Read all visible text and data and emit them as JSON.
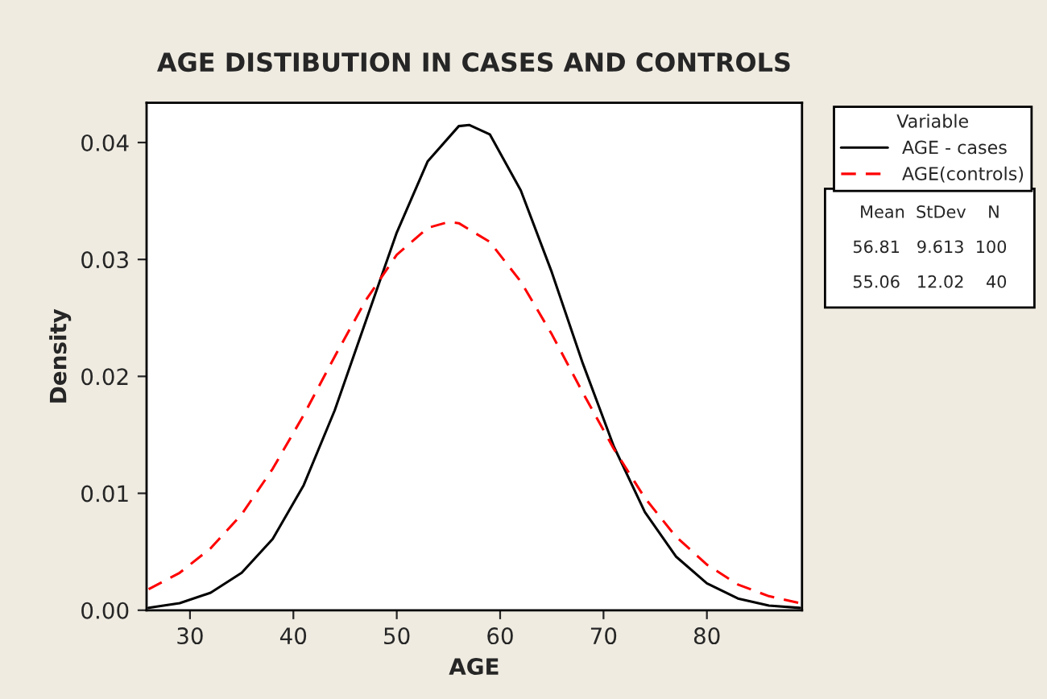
{
  "chart_data": {
    "type": "line",
    "title": "AGE DISTIBUTION IN CASES AND CONTROLS",
    "xlabel": "AGE",
    "ylabel": "Density",
    "legend_title": "Variable",
    "legend": "right",
    "grid": false,
    "xlim": [
      25.8,
      89.2
    ],
    "xticks": [
      30,
      40,
      50,
      60,
      70,
      80
    ],
    "ylim": [
      0,
      0.0434
    ],
    "yticks": [
      {
        "value": 0,
        "label": "0.00"
      },
      {
        "value": 0.01,
        "label": "0.01"
      },
      {
        "value": 0.02,
        "label": "0.02"
      },
      {
        "value": 0.03,
        "label": "0.03"
      },
      {
        "value": 0.04,
        "label": "0.04"
      }
    ],
    "series": [
      {
        "name": "AGE - cases",
        "color": "#000000",
        "line_style": "solid",
        "x": [
          26,
          29,
          32,
          35,
          38,
          41,
          44,
          47,
          50,
          53,
          56,
          57,
          59,
          62,
          65,
          68,
          71,
          74,
          77,
          80,
          83,
          86,
          89
        ],
        "values": [
          0.0002,
          0.0006,
          0.0015,
          0.0032,
          0.0061,
          0.0107,
          0.0171,
          0.0247,
          0.0323,
          0.0384,
          0.0414,
          0.0415,
          0.0407,
          0.0359,
          0.0289,
          0.0211,
          0.014,
          0.0084,
          0.0046,
          0.0023,
          0.001,
          0.0004,
          0.0002
        ]
      },
      {
        "name": "AGE(controls)",
        "color": "#ff0000",
        "line_style": "dashed",
        "x": [
          26,
          29,
          32,
          35,
          38,
          41,
          44,
          47,
          50,
          53,
          55,
          56,
          59,
          62,
          65,
          68,
          71,
          74,
          77,
          80,
          83,
          86,
          89
        ],
        "values": [
          0.0018,
          0.0032,
          0.0053,
          0.0082,
          0.0121,
          0.0167,
          0.0217,
          0.0265,
          0.0304,
          0.0327,
          0.0332,
          0.0331,
          0.0315,
          0.0281,
          0.0236,
          0.0186,
          0.0138,
          0.0096,
          0.0063,
          0.0039,
          0.0022,
          0.0012,
          0.0006
        ]
      }
    ],
    "annotations": [
      "Mean  StDev    N",
      "56.81   9.613  100",
      "55.06   12.02    40"
    ]
  }
}
